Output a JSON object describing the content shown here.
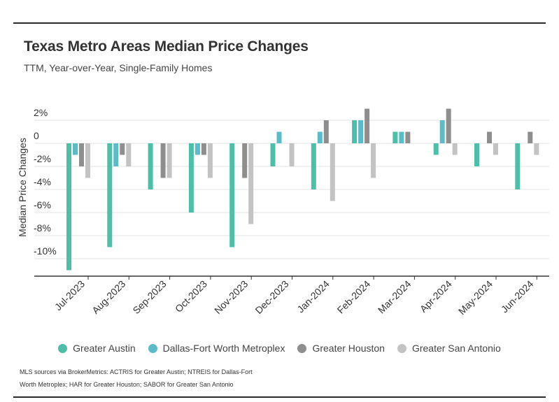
{
  "header": {
    "title": "Texas Metro Areas Median Price Changes",
    "subtitle": "TTM, Year-over-Year, Single-Family Homes"
  },
  "chart_data": {
    "type": "bar",
    "ylabel": "Median Price Changes",
    "xlabel": "",
    "ylim": [
      -11.5,
      3.5
    ],
    "yticks": [
      2,
      0,
      -2,
      -4,
      -6,
      -8,
      -10
    ],
    "ytick_labels": [
      "2%",
      "0",
      "-2%",
      "-4%",
      "-6%",
      "-8%",
      "-10%"
    ],
    "grid": true,
    "legend_position": "bottom",
    "categories": [
      "Jul-2023",
      "Aug-2023",
      "Sep-2023",
      "Oct-2023",
      "Nov-2023",
      "Dec-2023",
      "Jan-2024",
      "Feb-2024",
      "Mar-2024",
      "Apr-2024",
      "May-2024",
      "Jun-2024"
    ],
    "series": [
      {
        "name": "Greater Austin",
        "color": "#4dbfa8",
        "values": [
          -11,
          -9,
          -4,
          -6,
          -9,
          -2,
          -4,
          2,
          1,
          -1,
          -2,
          -4
        ]
      },
      {
        "name": "Dallas-Fort Worth Metroplex",
        "color": "#5bbcc8",
        "values": [
          -1,
          -2,
          0,
          -1,
          0,
          1,
          1,
          2,
          1,
          2,
          0,
          0
        ]
      },
      {
        "name": "Greater Houston",
        "color": "#8e8e8e",
        "values": [
          -2,
          -1,
          -3,
          -1,
          -3,
          0,
          2,
          3,
          1,
          3,
          1,
          1
        ]
      },
      {
        "name": "Greater San Antonio",
        "color": "#c3c3c3",
        "values": [
          -3,
          -2,
          -3,
          -3,
          -7,
          -2,
          -5,
          -3,
          0,
          -1,
          -1,
          -1
        ]
      }
    ]
  },
  "footer": {
    "source_line1": "MLS sources via BrokerMetrics: ACTRIS for Greater Austin; NTREIS for Dallas-Fort",
    "source_line2": "Worth Metroplex; HAR for Greater Houston; SABOR for Greater San Antonio"
  }
}
